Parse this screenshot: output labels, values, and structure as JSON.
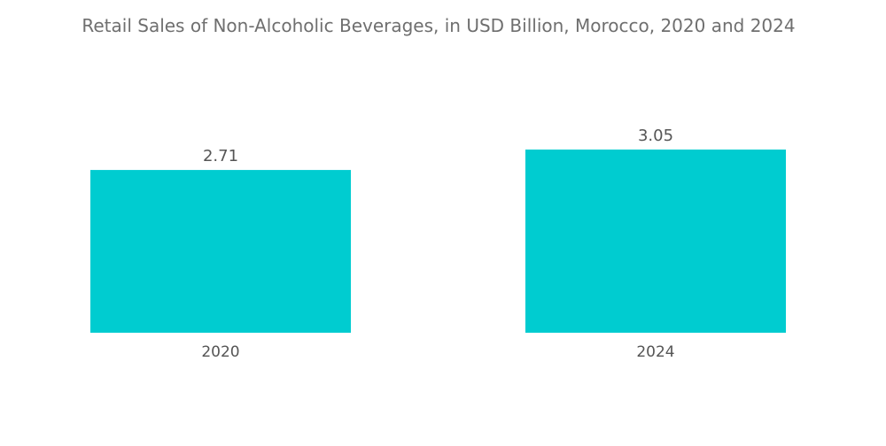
{
  "chart_data": {
    "type": "bar",
    "title": "Retail Sales of Non-Alcoholic Beverages, in USD Billion, Morocco, 2020 and 2024",
    "categories": [
      "2020",
      "2024"
    ],
    "values": [
      2.71,
      3.05
    ],
    "value_labels": [
      "2.71",
      "3.05"
    ],
    "xlabel": "",
    "ylabel": "",
    "ylim": [
      0,
      3.05
    ],
    "grid": false,
    "legend": "none",
    "bar_color": "#00ccd0",
    "text_color": "#6f6f6f"
  }
}
